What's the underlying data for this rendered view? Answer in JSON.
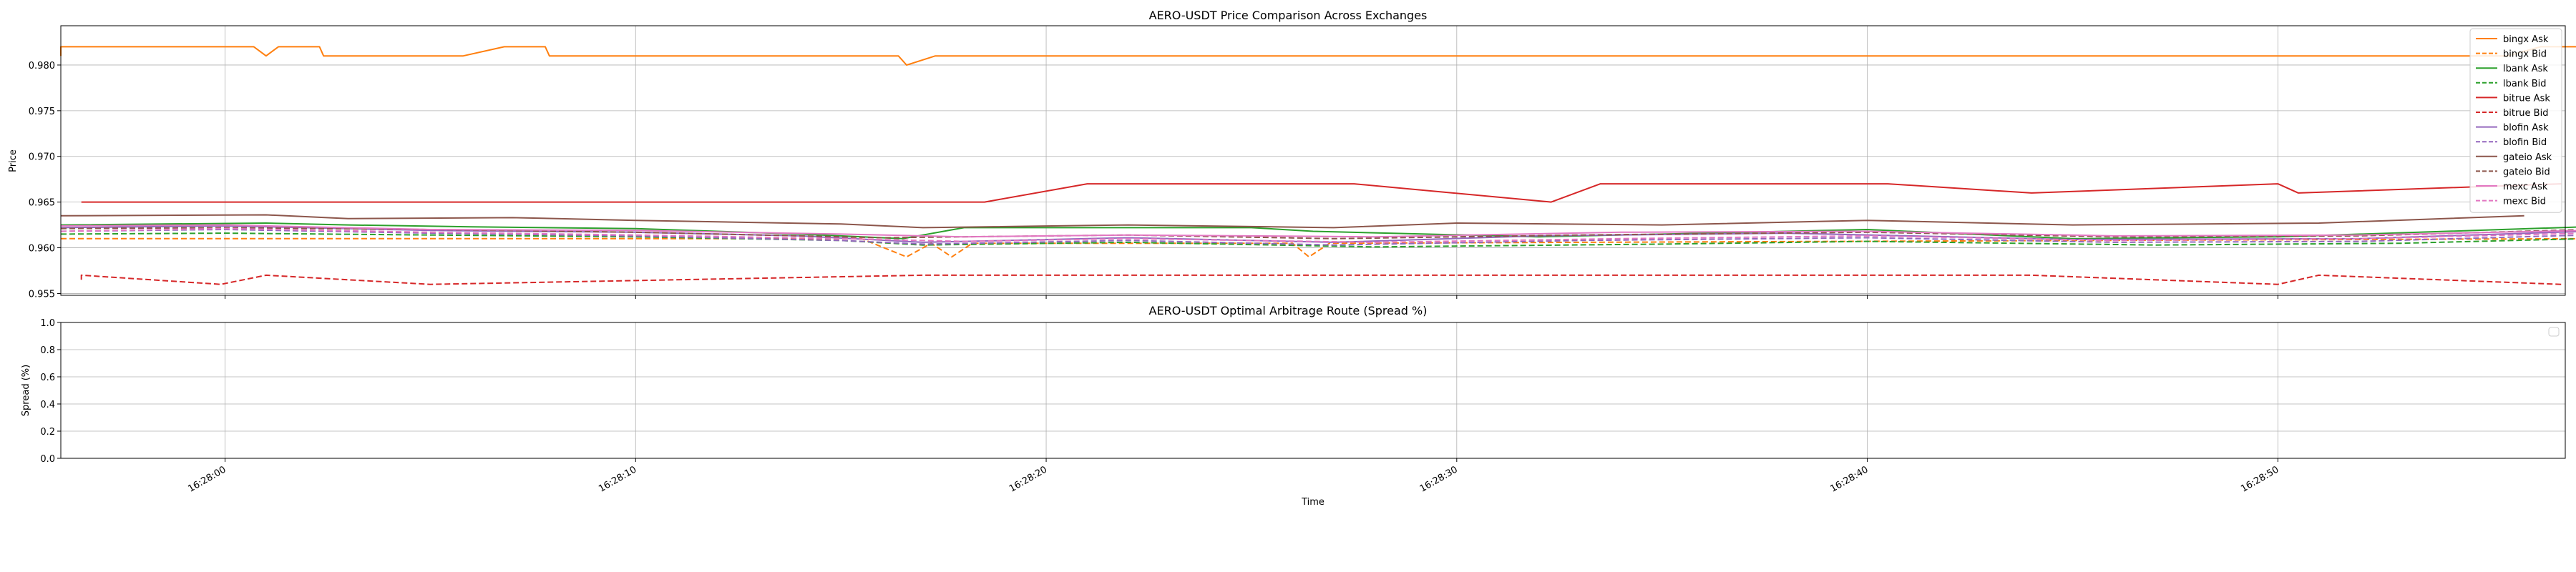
{
  "chart_data": [
    {
      "type": "line",
      "title": "AERO-USDT Price Comparison Across Exchanges",
      "xlabel": "",
      "ylabel": "Price",
      "x_unit": "time (HH:MM:SS)",
      "xlim": [
        "16:27:56",
        "16:28:57"
      ],
      "ylim": [
        0.9548,
        0.9843
      ],
      "yticks": [
        "0.955",
        "0.960",
        "0.965",
        "0.970",
        "0.975",
        "0.980"
      ],
      "ytick_values": [
        0.955,
        0.96,
        0.965,
        0.97,
        0.975,
        0.98
      ],
      "xticks": [
        "16:28:00",
        "16:28:10",
        "16:28:20",
        "16:28:30",
        "16:28:40",
        "16:28:50"
      ],
      "grid": true,
      "legend_position": "right",
      "series": [
        {
          "name": "bingx Ask",
          "color": "#ff7f0e",
          "dashed": false,
          "points": [
            [
              "16:27:56.0",
              0.981
            ],
            [
              "16:27:56.0",
              0.982
            ],
            [
              "16:28:00.7",
              0.982
            ],
            [
              "16:28:01.0",
              0.981
            ],
            [
              "16:28:01.3",
              0.982
            ],
            [
              "16:28:02.3",
              0.982
            ],
            [
              "16:28:02.4",
              0.981
            ],
            [
              "16:28:05.8",
              0.981
            ],
            [
              "16:28:06.8",
              0.982
            ],
            [
              "16:28:07.8",
              0.982
            ],
            [
              "16:28:07.9",
              0.981
            ],
            [
              "16:28:16.4",
              0.981
            ],
            [
              "16:28:16.6",
              0.98
            ],
            [
              "16:28:17.3",
              0.981
            ],
            [
              "16:28:55.6",
              0.981
            ],
            [
              "16:28:56.4",
              0.982
            ],
            [
              "16:28:57.5",
              0.982
            ]
          ]
        },
        {
          "name": "bingx Bid",
          "color": "#ff7f0e",
          "dashed": true,
          "points": [
            [
              "16:27:56.0",
              0.961
            ],
            [
              "16:28:00.0",
              0.961
            ],
            [
              "16:28:10.0",
              0.961
            ],
            [
              "16:28:15.5",
              0.961
            ],
            [
              "16:28:16.6",
              0.959
            ],
            [
              "16:28:17.2",
              0.9605
            ],
            [
              "16:28:17.7",
              0.959
            ],
            [
              "16:28:18.2",
              0.9605
            ],
            [
              "16:28:26.0",
              0.9605
            ],
            [
              "16:28:26.4",
              0.959
            ],
            [
              "16:28:26.9",
              0.9605
            ],
            [
              "16:28:57.5",
              0.961
            ]
          ]
        },
        {
          "name": "lbank Ask",
          "color": "#2ca02c",
          "dashed": false,
          "points": [
            [
              "16:27:56.0",
              0.9625
            ],
            [
              "16:28:01.0",
              0.9627
            ],
            [
              "16:28:03.0",
              0.9625
            ],
            [
              "16:28:06.0",
              0.9623
            ],
            [
              "16:28:10.0",
              0.9621
            ],
            [
              "16:28:14.0",
              0.9615
            ],
            [
              "16:28:16.5",
              0.961
            ],
            [
              "16:28:18.0",
              0.9622
            ],
            [
              "16:28:25.0",
              0.9622
            ],
            [
              "16:28:26.5",
              0.9618
            ],
            [
              "16:28:32.0",
              0.9612
            ],
            [
              "16:28:40.0",
              0.962
            ],
            [
              "16:28:45.0",
              0.961
            ],
            [
              "16:28:50.0",
              0.9612
            ],
            [
              "16:28:57.5",
              0.9623
            ]
          ]
        },
        {
          "name": "lbank Bid",
          "color": "#2ca02c",
          "dashed": true,
          "points": [
            [
              "16:27:56.0",
              0.9615
            ],
            [
              "16:28:00.0",
              0.9616
            ],
            [
              "16:28:05.0",
              0.9614
            ],
            [
              "16:28:10.0",
              0.9612
            ],
            [
              "16:28:15.0",
              0.9608
            ],
            [
              "16:28:17.0",
              0.9603
            ],
            [
              "16:28:22.0",
              0.9606
            ],
            [
              "16:28:28.0",
              0.9601
            ],
            [
              "16:28:35.0",
              0.9604
            ],
            [
              "16:28:40.0",
              0.9607
            ],
            [
              "16:28:47.0",
              0.9603
            ],
            [
              "16:28:53.0",
              0.9605
            ],
            [
              "16:28:57.5",
              0.961
            ]
          ]
        },
        {
          "name": "bitrue Ask",
          "color": "#d62728",
          "dashed": false,
          "points": [
            [
              "16:27:56.5",
              0.965
            ],
            [
              "16:28:18.5",
              0.965
            ],
            [
              "16:28:21.0",
              0.967
            ],
            [
              "16:28:27.5",
              0.967
            ],
            [
              "16:28:32.3",
              0.965
            ],
            [
              "16:28:33.5",
              0.967
            ],
            [
              "16:28:40.5",
              0.967
            ],
            [
              "16:28:44.0",
              0.966
            ],
            [
              "16:28:50.0",
              0.967
            ],
            [
              "16:28:50.5",
              0.966
            ],
            [
              "16:28:56.9",
              0.967
            ]
          ]
        },
        {
          "name": "bitrue Bid",
          "color": "#d62728",
          "dashed": true,
          "points": [
            [
              "16:27:56.5",
              0.9565
            ],
            [
              "16:27:56.5",
              0.957
            ],
            [
              "16:27:59.9",
              0.956
            ],
            [
              "16:28:01.0",
              0.957
            ],
            [
              "16:28:05.0",
              0.956
            ],
            [
              "16:28:17.0",
              0.957
            ],
            [
              "16:28:44.0",
              0.957
            ],
            [
              "16:28:50.0",
              0.956
            ],
            [
              "16:28:51.0",
              0.957
            ],
            [
              "16:28:56.9",
              0.956
            ]
          ]
        },
        {
          "name": "blofin Ask",
          "color": "#9467bd",
          "dashed": false,
          "points": [
            [
              "16:27:56.0",
              0.9622
            ],
            [
              "16:28:00.0",
              0.9624
            ],
            [
              "16:28:05.0",
              0.9619
            ],
            [
              "16:28:10.0",
              0.9617
            ],
            [
              "16:28:14.0",
              0.9613
            ],
            [
              "16:28:17.0",
              0.9606
            ],
            [
              "16:28:22.0",
              0.9611
            ],
            [
              "16:28:27.0",
              0.9606
            ],
            [
              "16:28:32.0",
              0.9613
            ],
            [
              "16:28:38.0",
              0.9616
            ],
            [
              "16:28:45.0",
              0.9609
            ],
            [
              "16:28:52.0",
              0.961
            ],
            [
              "16:28:57.5",
              0.9618
            ]
          ]
        },
        {
          "name": "blofin Bid",
          "color": "#9467bd",
          "dashed": true,
          "points": [
            [
              "16:27:56.0",
              0.9618
            ],
            [
              "16:28:00.0",
              0.962
            ],
            [
              "16:28:05.0",
              0.9616
            ],
            [
              "16:28:10.0",
              0.9613
            ],
            [
              "16:28:15.0",
              0.9608
            ],
            [
              "16:28:17.0",
              0.9604
            ],
            [
              "16:28:22.0",
              0.9608
            ],
            [
              "16:28:27.0",
              0.9603
            ],
            [
              "16:28:33.0",
              0.9608
            ],
            [
              "16:28:40.0",
              0.9611
            ],
            [
              "16:28:46.0",
              0.9606
            ],
            [
              "16:28:52.0",
              0.9607
            ],
            [
              "16:28:57.5",
              0.9614
            ]
          ]
        },
        {
          "name": "gateio Ask",
          "color": "#8c564b",
          "dashed": false,
          "points": [
            [
              "16:27:56.0",
              0.9635
            ],
            [
              "16:28:01.0",
              0.9636
            ],
            [
              "16:28:03.0",
              0.9632
            ],
            [
              "16:28:07.0",
              0.9633
            ],
            [
              "16:28:10.0",
              0.963
            ],
            [
              "16:28:15.0",
              0.9626
            ],
            [
              "16:28:17.0",
              0.9622
            ],
            [
              "16:28:22.0",
              0.9625
            ],
            [
              "16:28:27.0",
              0.9622
            ],
            [
              "16:28:30.0",
              0.9627
            ],
            [
              "16:28:35.0",
              0.9625
            ],
            [
              "16:28:40.0",
              0.963
            ],
            [
              "16:28:45.0",
              0.9625
            ],
            [
              "16:28:51.0",
              0.9627
            ],
            [
              "16:28:56.0",
              0.9635
            ]
          ]
        },
        {
          "name": "gateio Bid",
          "color": "#8c564b",
          "dashed": true,
          "points": [
            [
              "16:27:56.0",
              0.9621
            ],
            [
              "16:28:00.0",
              0.9622
            ],
            [
              "16:28:05.0",
              0.962
            ],
            [
              "16:28:10.0",
              0.9617
            ],
            [
              "16:28:16.0",
              0.9611
            ],
            [
              "16:28:22.0",
              0.9614
            ],
            [
              "16:28:27.0",
              0.961
            ],
            [
              "16:28:33.0",
              0.9614
            ],
            [
              "16:28:40.0",
              0.9617
            ],
            [
              "16:28:46.0",
              0.9612
            ],
            [
              "16:28:52.0",
              0.9613
            ],
            [
              "16:28:57.5",
              0.962
            ]
          ]
        },
        {
          "name": "mexc Ask",
          "color": "#e377c2",
          "dashed": false,
          "points": [
            [
              "16:27:56.0",
              0.9624
            ],
            [
              "16:28:00.0",
              0.9625
            ],
            [
              "16:28:05.0",
              0.962
            ],
            [
              "16:28:10.0",
              0.9619
            ],
            [
              "16:28:15.0",
              0.9615
            ],
            [
              "16:28:18.0",
              0.9612
            ],
            [
              "16:28:22.0",
              0.9614
            ],
            [
              "16:28:28.0",
              0.9612
            ],
            [
              "16:28:34.0",
              0.9617
            ],
            [
              "16:28:40.0",
              0.9618
            ],
            [
              "16:28:46.0",
              0.9613
            ],
            [
              "16:28:52.0",
              0.9614
            ],
            [
              "16:28:57.5",
              0.9619
            ]
          ]
        },
        {
          "name": "mexc Bid",
          "color": "#e377c2",
          "dashed": true,
          "points": [
            [
              "16:27:56.0",
              0.9618
            ],
            [
              "16:28:00.0",
              0.9621
            ],
            [
              "16:28:05.0",
              0.9617
            ],
            [
              "16:28:10.0",
              0.9614
            ],
            [
              "16:28:15.0",
              0.961
            ],
            [
              "16:28:18.0",
              0.9607
            ],
            [
              "16:28:22.0",
              0.961
            ],
            [
              "16:28:28.0",
              0.9606
            ],
            [
              "16:28:34.0",
              0.961
            ],
            [
              "16:28:40.0",
              0.9613
            ],
            [
              "16:28:46.0",
              0.9608
            ],
            [
              "16:28:52.0",
              0.961
            ],
            [
              "16:28:57.5",
              0.9616
            ]
          ]
        }
      ]
    },
    {
      "type": "line",
      "title": "AERO-USDT Optimal Arbitrage Route (Spread %)",
      "xlabel": "Time",
      "ylabel": "Spread (%)",
      "xlim": [
        "16:27:56",
        "16:28:57"
      ],
      "ylim": [
        0.0,
        1.0
      ],
      "yticks": [
        "0.0",
        "0.2",
        "0.4",
        "0.6",
        "0.8",
        "1.0"
      ],
      "ytick_values": [
        0.0,
        0.2,
        0.4,
        0.6,
        0.8,
        1.0
      ],
      "xticks": [
        "16:28:00",
        "16:28:10",
        "16:28:20",
        "16:28:30",
        "16:28:40",
        "16:28:50"
      ],
      "grid": true,
      "legend_position": "top-right",
      "series": []
    }
  ]
}
